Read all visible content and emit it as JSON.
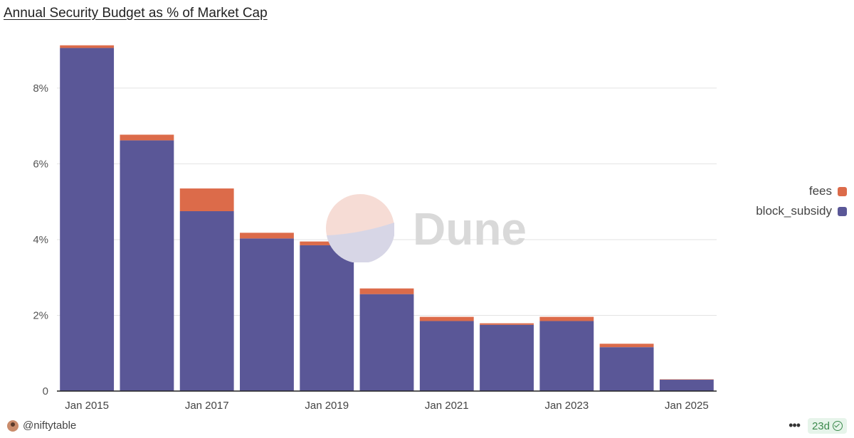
{
  "chart_data": {
    "type": "bar",
    "stacked": true,
    "title": "Annual Security Budget as % of Market Cap",
    "categories": [
      "2015",
      "2016",
      "2017",
      "2018",
      "2019",
      "2020",
      "2021",
      "2022",
      "2023",
      "2024",
      "2025"
    ],
    "x_tick_labels": [
      "Jan 2015",
      "Jan 2017",
      "Jan 2019",
      "Jan 2021",
      "Jan 2023",
      "Jan 2025"
    ],
    "x_tick_categories": [
      "2015",
      "2017",
      "2019",
      "2021",
      "2023",
      "2025"
    ],
    "y_tick_labels": [
      "0",
      "2%",
      "4%",
      "6%",
      "8%"
    ],
    "y_ticks": [
      0,
      2,
      4,
      6,
      8
    ],
    "ylim": [
      0,
      9.2
    ],
    "grid": true,
    "legend_position": "right",
    "series": [
      {
        "name": "block_subsidy",
        "color": "#5a5797",
        "values": [
          9.06,
          6.62,
          4.75,
          4.03,
          3.85,
          2.56,
          1.85,
          1.75,
          1.85,
          1.16,
          0.3
        ]
      },
      {
        "name": "fees",
        "color": "#dc6b4a",
        "values": [
          0.07,
          0.15,
          0.6,
          0.15,
          0.1,
          0.15,
          0.11,
          0.04,
          0.11,
          0.09,
          0.01
        ]
      }
    ]
  },
  "legend": {
    "items": [
      {
        "label": "fees",
        "color": "#dc6b4a"
      },
      {
        "label": "block_subsidy",
        "color": "#5a5797"
      }
    ]
  },
  "watermark": {
    "text": "Dune"
  },
  "footer": {
    "user": "@niftytable",
    "more": "•••",
    "age": "23d"
  }
}
